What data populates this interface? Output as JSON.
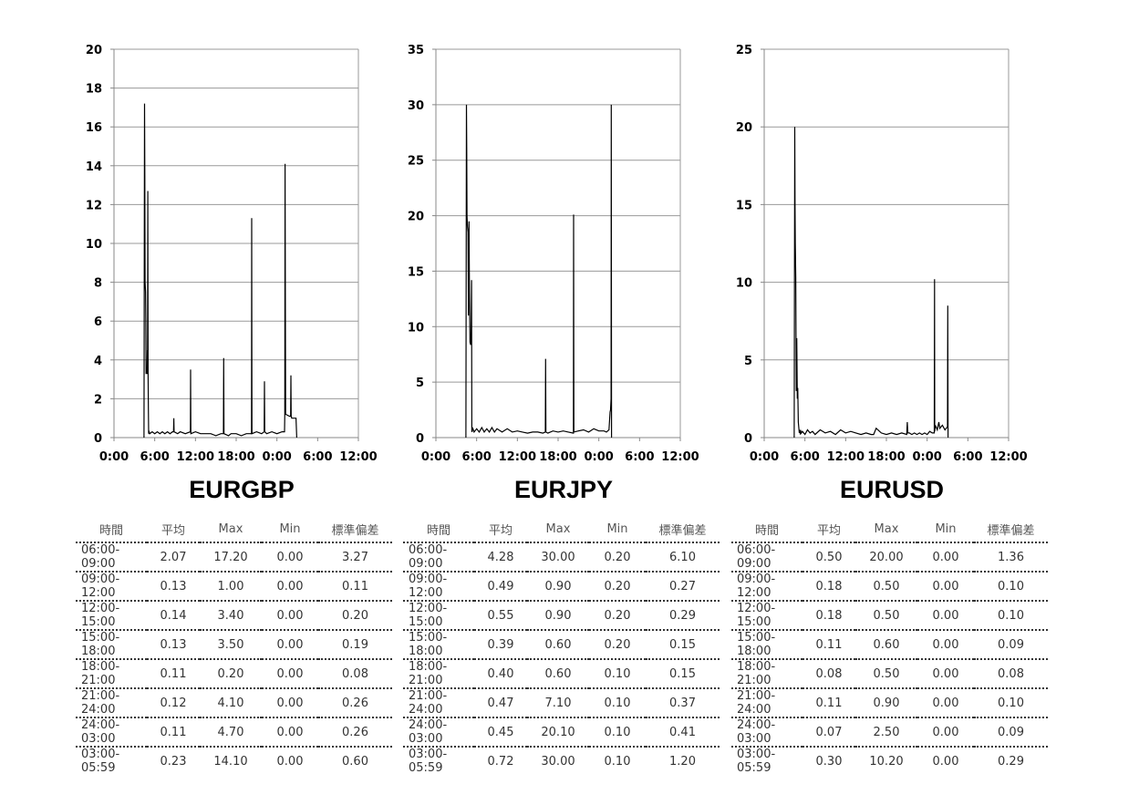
{
  "table_headers": [
    "時間",
    "平均",
    "Max",
    "Min",
    "標準偏差"
  ],
  "panels": [
    {
      "title": "EURGBP",
      "rows": [
        [
          "06:00-09:00",
          "2.07",
          "17.20",
          "0.00",
          "3.27"
        ],
        [
          "09:00-12:00",
          "0.13",
          "1.00",
          "0.00",
          "0.11"
        ],
        [
          "12:00-15:00",
          "0.14",
          "3.40",
          "0.00",
          "0.20"
        ],
        [
          "15:00-18:00",
          "0.13",
          "3.50",
          "0.00",
          "0.19"
        ],
        [
          "18:00-21:00",
          "0.11",
          "0.20",
          "0.00",
          "0.08"
        ],
        [
          "21:00-24:00",
          "0.12",
          "4.10",
          "0.00",
          "0.26"
        ],
        [
          "24:00-03:00",
          "0.11",
          "4.70",
          "0.00",
          "0.26"
        ],
        [
          "03:00-05:59",
          "0.23",
          "14.10",
          "0.00",
          "0.60"
        ]
      ]
    },
    {
      "title": "EURJPY",
      "rows": [
        [
          "06:00-09:00",
          "4.28",
          "30.00",
          "0.20",
          "6.10"
        ],
        [
          "09:00-12:00",
          "0.49",
          "0.90",
          "0.20",
          "0.27"
        ],
        [
          "12:00-15:00",
          "0.55",
          "0.90",
          "0.20",
          "0.29"
        ],
        [
          "15:00-18:00",
          "0.39",
          "0.60",
          "0.20",
          "0.15"
        ],
        [
          "18:00-21:00",
          "0.40",
          "0.60",
          "0.10",
          "0.15"
        ],
        [
          "21:00-24:00",
          "0.47",
          "7.10",
          "0.10",
          "0.37"
        ],
        [
          "24:00-03:00",
          "0.45",
          "20.10",
          "0.10",
          "0.41"
        ],
        [
          "03:00-05:59",
          "0.72",
          "30.00",
          "0.10",
          "1.20"
        ]
      ]
    },
    {
      "title": "EURUSD",
      "rows": [
        [
          "06:00-09:00",
          "0.50",
          "20.00",
          "0.00",
          "1.36"
        ],
        [
          "09:00-12:00",
          "0.18",
          "0.50",
          "0.00",
          "0.10"
        ],
        [
          "12:00-15:00",
          "0.18",
          "0.50",
          "0.00",
          "0.10"
        ],
        [
          "15:00-18:00",
          "0.11",
          "0.60",
          "0.00",
          "0.09"
        ],
        [
          "18:00-21:00",
          "0.08",
          "0.50",
          "0.00",
          "0.08"
        ],
        [
          "21:00-24:00",
          "0.11",
          "0.90",
          "0.00",
          "0.10"
        ],
        [
          "24:00-03:00",
          "0.07",
          "2.50",
          "0.00",
          "0.09"
        ],
        [
          "03:00-05:59",
          "0.30",
          "10.20",
          "0.00",
          "0.29"
        ]
      ]
    }
  ],
  "chart_data": [
    {
      "type": "line",
      "x_tick_labels": [
        "0:00",
        "6:00",
        "12:00",
        "18:00",
        "0:00",
        "6:00",
        "12:00"
      ],
      "xlim": [
        0,
        48
      ],
      "ylim": [
        0,
        20
      ],
      "y_ticks": [
        0,
        2,
        4,
        6,
        8,
        10,
        12,
        14,
        16,
        18,
        20
      ],
      "grid": true,
      "series": [
        {
          "x": [
            5.9,
            6.0,
            6.05,
            6.1,
            6.2,
            6.25,
            6.3,
            6.4,
            6.5,
            6.55,
            6.6,
            6.65,
            6.7,
            6.75,
            6.8,
            6.9,
            7.0,
            7.5,
            8.0,
            8.5,
            9.0,
            9.5,
            10.0,
            10.5,
            11.0,
            11.5,
            11.7,
            11.75,
            11.8,
            12.5,
            13.0,
            14.0,
            15.0,
            15.05,
            15.1,
            16.0,
            17.0,
            18.0,
            19.0,
            20.0,
            21.0,
            21.5,
            21.55,
            21.6,
            22.5,
            23.0,
            24.0,
            25.0,
            26.0,
            27.0,
            27.05,
            27.1,
            28.0,
            29.0,
            29.5,
            29.55,
            29.6,
            30.0,
            31.0,
            32.0,
            33.0,
            33.5,
            33.55,
            33.6,
            33.7,
            34.5,
            34.7,
            34.75,
            34.8,
            34.9,
            35.0,
            35.5,
            35.75,
            35.9
          ],
          "y": [
            0,
            17.2,
            13.5,
            8.0,
            7.5,
            6.0,
            3.3,
            3.3,
            3.3,
            4.5,
            3.3,
            12.7,
            3.3,
            1.5,
            0.2,
            0.3,
            0.2,
            0.3,
            0.2,
            0.3,
            0.2,
            0.3,
            0.2,
            0.3,
            0.2,
            0.3,
            0.3,
            1.0,
            0.3,
            0.2,
            0.3,
            0.2,
            0.3,
            3.5,
            0.2,
            0.3,
            0.2,
            0.2,
            0.2,
            0.1,
            0.2,
            0.2,
            4.1,
            0.2,
            0.1,
            0.2,
            0.2,
            0.1,
            0.2,
            0.2,
            11.3,
            0.2,
            0.3,
            0.2,
            0.3,
            2.9,
            0.3,
            0.2,
            0.3,
            0.2,
            0.3,
            0.3,
            1.2,
            14.1,
            1.2,
            1.1,
            1.1,
            3.2,
            1.1,
            1.0,
            1.0,
            1.0,
            1.0,
            0
          ]
        }
      ]
    },
    {
      "type": "line",
      "x_tick_labels": [
        "0:00",
        "6:00",
        "12:00",
        "18:00",
        "0:00",
        "6:00",
        "12:00"
      ],
      "xlim": [
        0,
        48
      ],
      "ylim": [
        0,
        35
      ],
      "y_ticks": [
        0,
        5,
        10,
        15,
        20,
        25,
        30,
        35
      ],
      "grid": true,
      "series": [
        {
          "x": [
            5.9,
            6.0,
            6.05,
            6.1,
            6.2,
            6.3,
            6.4,
            6.5,
            6.6,
            6.7,
            6.8,
            6.9,
            7.0,
            7.05,
            7.1,
            7.2,
            7.5,
            8.0,
            8.5,
            9.0,
            9.5,
            10.0,
            10.5,
            11.0,
            11.5,
            12.0,
            13.0,
            14.0,
            15.0,
            16.0,
            17.0,
            18.0,
            19.0,
            20.0,
            21.0,
            21.5,
            21.55,
            21.6,
            22.0,
            23.0,
            24.0,
            25.0,
            26.0,
            27.0,
            27.05,
            27.1,
            28.0,
            29.0,
            30.0,
            31.0,
            32.0,
            33.0,
            33.5,
            34.0,
            34.1,
            34.2,
            34.3,
            34.4,
            34.45,
            34.5
          ],
          "y": [
            0,
            30.0,
            26.0,
            20.0,
            19.0,
            18.5,
            11.0,
            19.5,
            13.0,
            8.6,
            8.4,
            8.4,
            14.2,
            0.6,
            0.5,
            0.9,
            0.5,
            0.8,
            0.5,
            0.9,
            0.5,
            0.8,
            0.5,
            0.9,
            0.5,
            0.8,
            0.5,
            0.8,
            0.5,
            0.6,
            0.5,
            0.4,
            0.5,
            0.5,
            0.4,
            0.5,
            7.1,
            0.5,
            0.4,
            0.6,
            0.5,
            0.6,
            0.5,
            0.4,
            20.1,
            0.5,
            0.6,
            0.7,
            0.5,
            0.8,
            0.6,
            0.6,
            0.5,
            0.7,
            1.5,
            2.3,
            2.5,
            3.5,
            30.0,
            0
          ]
        }
      ]
    },
    {
      "type": "line",
      "x_tick_labels": [
        "0:00",
        "6:00",
        "12:00",
        "18:00",
        "0:00",
        "6:00",
        "12:00"
      ],
      "xlim": [
        0,
        48
      ],
      "ylim": [
        0,
        25
      ],
      "y_ticks": [
        0,
        5,
        10,
        15,
        20,
        25
      ],
      "grid": true,
      "series": [
        {
          "x": [
            5.9,
            6.0,
            6.05,
            6.1,
            6.2,
            6.3,
            6.4,
            6.5,
            6.6,
            6.7,
            6.8,
            6.9,
            7.0,
            7.1,
            7.2,
            7.3,
            7.5,
            8.0,
            8.5,
            9.0,
            9.5,
            10.0,
            11.0,
            12.0,
            13.0,
            14.0,
            15.0,
            16.0,
            17.0,
            18.0,
            19.0,
            20.0,
            21.0,
            21.5,
            22.0,
            23.0,
            24.0,
            25.0,
            26.0,
            27.0,
            28.0,
            28.1,
            28.2,
            28.5,
            29.0,
            29.5,
            30.0,
            30.5,
            31.0,
            31.5,
            32.0,
            32.5,
            33.0,
            33.4,
            33.45,
            33.5,
            33.6,
            34.0,
            34.3,
            34.5,
            35.0,
            35.5,
            36.0,
            36.05,
            36.1
          ],
          "y": [
            0,
            20.0,
            15.0,
            12.5,
            10.3,
            3.0,
            6.4,
            2.5,
            3.2,
            1.0,
            0.6,
            0.3,
            0.5,
            0.2,
            0.4,
            0.3,
            0.4,
            0.2,
            0.5,
            0.3,
            0.4,
            0.2,
            0.5,
            0.3,
            0.4,
            0.2,
            0.5,
            0.3,
            0.4,
            0.3,
            0.2,
            0.3,
            0.2,
            0.2,
            0.6,
            0.3,
            0.2,
            0.3,
            0.2,
            0.3,
            0.2,
            1.0,
            0.3,
            0.3,
            0.2,
            0.3,
            0.2,
            0.3,
            0.2,
            0.3,
            0.2,
            0.4,
            0.3,
            0.3,
            10.2,
            0.4,
            0.8,
            0.5,
            1.0,
            0.6,
            0.8,
            0.5,
            0.7,
            8.5,
            0
          ]
        }
      ]
    }
  ]
}
